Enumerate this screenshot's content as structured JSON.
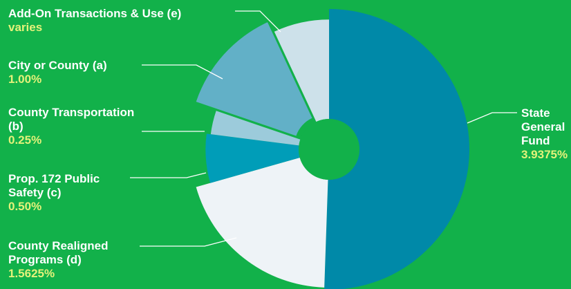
{
  "chart_data": {
    "type": "pie",
    "style": "donut",
    "title": "",
    "slices": [
      {
        "label": "State General Fund",
        "value_label": "3.9375%",
        "value": 3.9375,
        "color": "#0089a8"
      },
      {
        "label": "County Realigned Programs (d)",
        "value_label": "1.5625%",
        "value": 1.5625,
        "color": "#eef3f7"
      },
      {
        "label": "Prop. 172 Public Safety (c)",
        "value_label": "0.50%",
        "value": 0.5,
        "color": "#009db8"
      },
      {
        "label": "County Transportation (b)",
        "value_label": "0.25%",
        "value": 0.25,
        "color": "#9ccbdb"
      },
      {
        "label": "City or County (a)",
        "value_label": "1.00%",
        "value": 1.0,
        "color": "#62b0c7"
      },
      {
        "label": "Add-On Transactions & Use (e)",
        "value_label": "varies",
        "value": 0.54,
        "color": "#cde1ea"
      }
    ],
    "colors": {
      "background": "#12b14a",
      "label_text": "#ffffff",
      "value_text": "#e4f27a",
      "leader_line": "#ffffff"
    }
  }
}
